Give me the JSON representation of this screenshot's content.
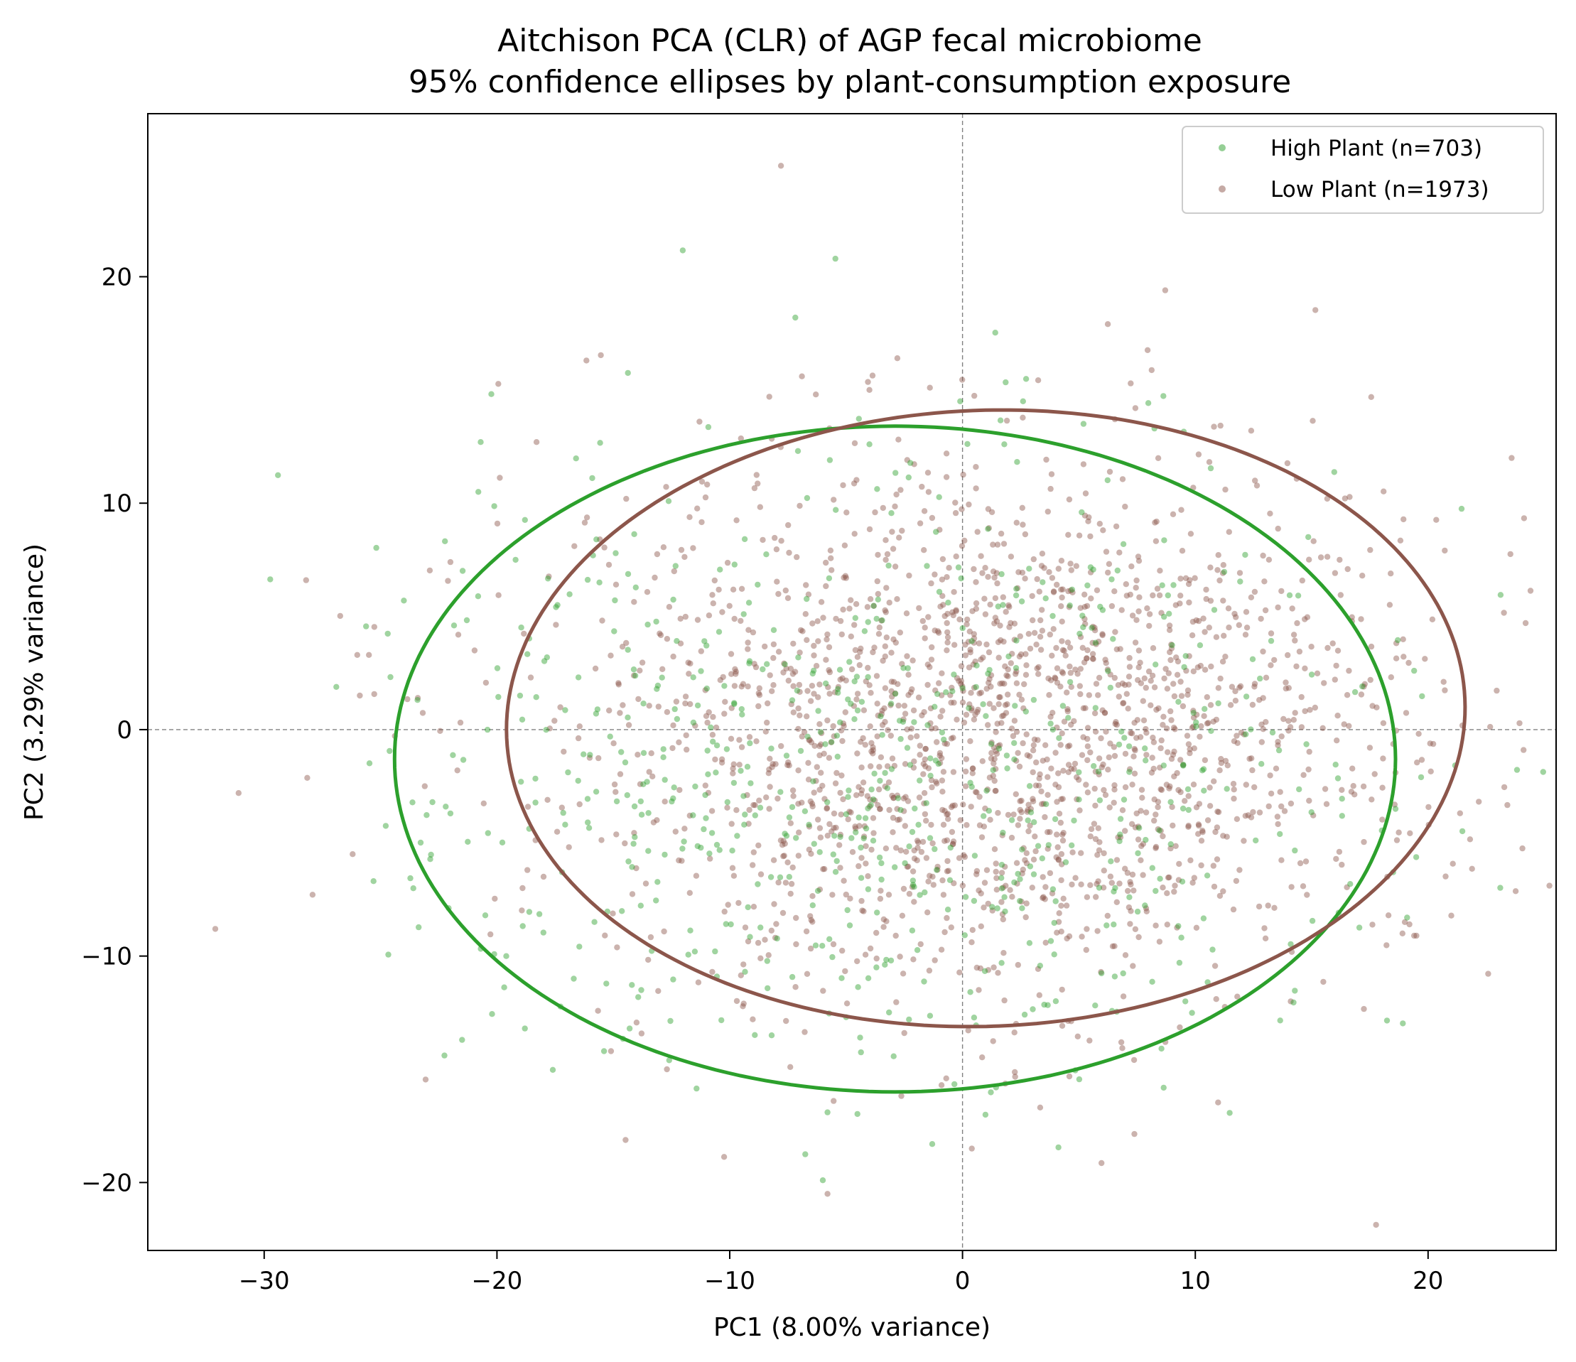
{
  "chart_data": {
    "type": "scatter",
    "title": "Aitchison PCA (CLR) of AGP fecal microbiome",
    "subtitle": "95% confidence ellipses by plant-consumption exposure",
    "xlabel": "PC1 (8.00% variance)",
    "ylabel": "PC2 (3.29% variance)",
    "xlim": [
      -35,
      25.5
    ],
    "ylim": [
      -23,
      27.2
    ],
    "xticks": [
      -30,
      -20,
      -10,
      0,
      10,
      20
    ],
    "yticks": [
      -20,
      -10,
      0,
      10,
      20
    ],
    "xtick_labels": [
      "−30",
      "−20",
      "−10",
      "0",
      "10",
      "20"
    ],
    "ytick_labels": [
      "−20",
      "−10",
      "0",
      "10",
      "20"
    ],
    "reference_lines": {
      "x": 0,
      "y": 0,
      "style": "dashed",
      "color": "#808080"
    },
    "grid": false,
    "legend_placement": "top-right",
    "series": [
      {
        "name": "High Plant (n=703)",
        "color": "#2ca02c",
        "point_count": 703,
        "ellipse": {
          "center": [
            -2.9,
            -1.3
          ],
          "semi_axis_x": 21.5,
          "semi_axis_y": 14.7,
          "angle_deg": 0
        },
        "generation": {
          "seed": 7,
          "center": [
            -3.2,
            -1.4
          ],
          "sd": [
            10.2,
            6.9
          ]
        },
        "points": [
          [
            -24.0,
            5.7
          ],
          [
            -20.7,
            12.7
          ],
          [
            -20.8,
            10.5
          ],
          [
            -19.2,
            7.5
          ],
          [
            -17.4,
            5.5
          ],
          [
            -15.6,
            6.5
          ],
          [
            -21.5,
            -13.7
          ],
          [
            -22.0,
            -3.7
          ],
          [
            -22.2,
            -3.4
          ],
          [
            -20.5,
            -8.2
          ],
          [
            -19.6,
            -10.0
          ],
          [
            -18.8,
            -13.2
          ],
          [
            -16.7,
            -11.0
          ],
          [
            -15.4,
            -14.2
          ],
          [
            -14.3,
            -13.2
          ],
          [
            -13.8,
            -11.5
          ],
          [
            -12.6,
            -14.6
          ],
          [
            -8.2,
            -13.5
          ],
          [
            -5.8,
            -16.9
          ],
          [
            -6.0,
            -19.9
          ],
          [
            -1.3,
            -18.3
          ],
          [
            -5.7,
            11.9
          ],
          [
            -4.0,
            12.6
          ],
          [
            19.4,
            2.6
          ],
          [
            19.7,
            -2.1
          ],
          [
            18.6,
            -3.5
          ],
          [
            18.5,
            -6.3
          ],
          [
            19.1,
            -8.3
          ],
          [
            -1.5,
            0.2
          ],
          [
            1.0,
            0.6
          ],
          [
            2.6,
            14.5
          ],
          [
            -0.1,
            14.5
          ],
          [
            -3.7,
            -10.5
          ],
          [
            -5.0,
            -12.7
          ],
          [
            -4.4,
            -13.6
          ],
          [
            -11.5,
            -9.8
          ],
          [
            -17.2,
            -6.3
          ],
          [
            -16.1,
            -4.1
          ],
          [
            -9.4,
            5.1
          ],
          [
            -8.8,
            6.4
          ]
        ]
      },
      {
        "name": "Low Plant (n=1973)",
        "color": "#8c564b",
        "point_count": 1973,
        "ellipse": {
          "center": [
            1.0,
            0.5
          ],
          "semi_axis_x": 20.6,
          "semi_axis_y": 13.6,
          "angle_deg": 2.4
        },
        "generation": {
          "seed": 13,
          "center": [
            1.7,
            -0.1
          ],
          "sd": [
            9.3,
            5.8
          ]
        },
        "points": [
          [
            -7.8,
            24.9
          ],
          [
            -2.8,
            16.4
          ],
          [
            -6.9,
            15.6
          ],
          [
            -8.3,
            14.7
          ],
          [
            -6.3,
            14.8
          ],
          [
            -4.0,
            15.0
          ],
          [
            -1.4,
            15.1
          ],
          [
            -11.3,
            13.6
          ],
          [
            -28.2,
            6.6
          ],
          [
            -26.0,
            3.3
          ],
          [
            -31.1,
            -2.8
          ],
          [
            -32.1,
            -8.8
          ],
          [
            -23.4,
            1.4
          ],
          [
            -22.0,
            7.4
          ],
          [
            -18.3,
            12.7
          ],
          [
            16.2,
            7.5
          ],
          [
            16.6,
            2.6
          ],
          [
            17.5,
            -0.8
          ],
          [
            18.6,
            -1.9
          ],
          [
            19.0,
            -8.5
          ],
          [
            19.4,
            -9.1
          ],
          [
            18.9,
            -9.0
          ],
          [
            19.2,
            -8.6
          ],
          [
            18.3,
            -8.2
          ],
          [
            19.5,
            -9.1
          ],
          [
            0.4,
            -18.5
          ],
          [
            -5.8,
            -20.5
          ],
          [
            -0.7,
            -15.4
          ],
          [
            -0.9,
            -15.7
          ],
          [
            -12.7,
            -15.0
          ],
          [
            -7.4,
            -14.9
          ],
          [
            -2.5,
            -13.4
          ],
          [
            -23.1,
            -2.5
          ],
          [
            -21.7,
            -1.8
          ],
          [
            -26.2,
            -5.5
          ],
          [
            -18.9,
            -7.0
          ],
          [
            -15.1,
            -14.2
          ],
          [
            14.1,
            -12.0
          ],
          [
            10.9,
            -11.9
          ],
          [
            -25.5,
            3.3
          ]
        ]
      }
    ]
  }
}
